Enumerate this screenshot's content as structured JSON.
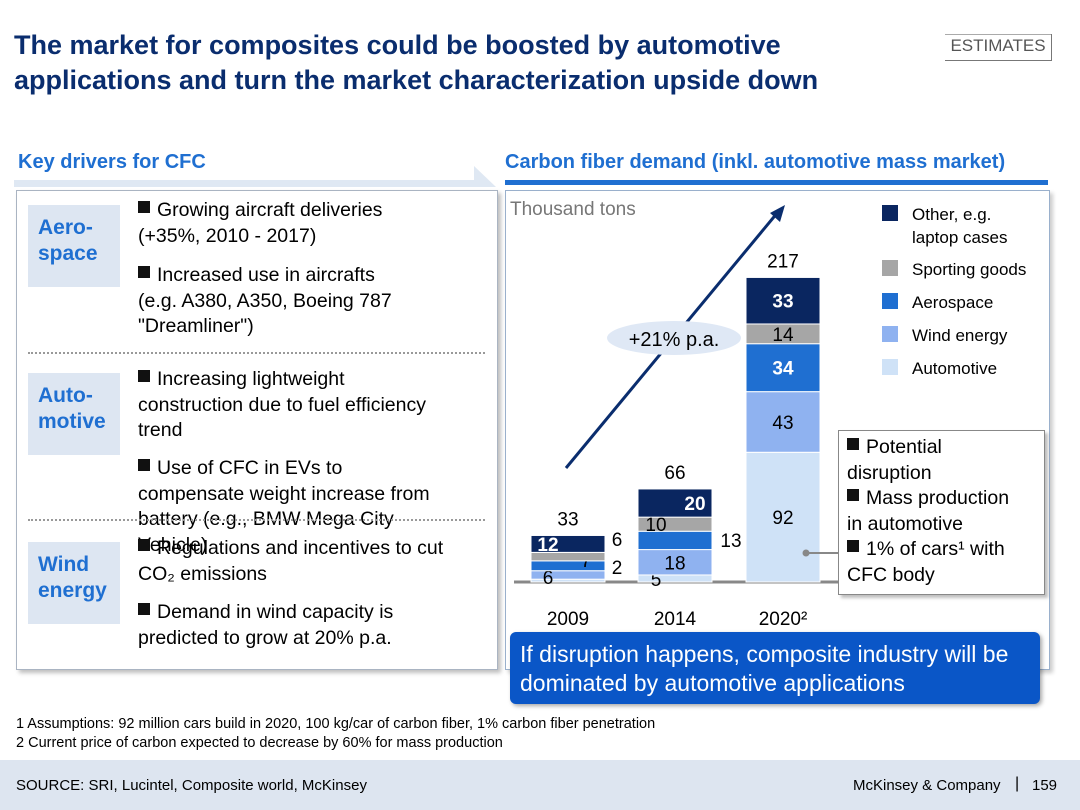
{
  "title": "The market for composites could be boosted by automotive applications and turn the market characterization upside down",
  "tag": "ESTIMATES",
  "left": {
    "header": "Key drivers for CFC",
    "sections": [
      {
        "category": "Aero-\nspace",
        "bullets": [
          "Growing aircraft deliveries\n(+35%, 2010 - 2017)",
          "Increased use in aircrafts\n(e.g. A380, A350, Boeing 787\n\"Dreamliner\")"
        ]
      },
      {
        "category": "Auto-\nmotive",
        "bullets": [
          "Increasing lightweight\nconstruction due to fuel efficiency\ntrend",
          "Use of CFC in EVs to\ncompensate weight increase from\nbattery (e.g., BMW Mega City\nVehicle)"
        ]
      },
      {
        "category": "Wind\nenergy",
        "bullets": [
          "Regulations and incentives to cut\nCO₂ emissions",
          "Demand in wind capacity is\npredicted to grow at 20% p.a."
        ]
      }
    ]
  },
  "right": {
    "header": "Carbon fiber demand (inkl. automotive mass market)",
    "unit": "Thousand tons",
    "growth_label": "+21% p.a.",
    "callout": [
      "Potential\ndisruption",
      "Mass production\nin automotive",
      "1% of cars¹ with\nCFC body"
    ],
    "banner": "If disruption happens, composite industry will be dominated by automotive applications"
  },
  "chart_data": {
    "type": "bar",
    "stacked": true,
    "categories": [
      "2009",
      "2014",
      "2020²"
    ],
    "ylabel": "Thousand tons",
    "totals": [
      33,
      66,
      217
    ],
    "series": [
      {
        "name": "Automotive",
        "color": "#cfe2f7",
        "values": [
          2,
          5,
          92
        ]
      },
      {
        "name": "Wind energy",
        "color": "#8fb2f0",
        "values": [
          6,
          18,
          43
        ]
      },
      {
        "name": "Aerospace",
        "color": "#1f6fd1",
        "values": [
          7,
          13,
          34
        ]
      },
      {
        "name": "Sporting goods",
        "color": "#a6a6a6",
        "values": [
          6,
          10,
          14
        ]
      },
      {
        "name": "Other, e.g.\nlaptop cases",
        "color": "#0a2660",
        "values": [
          12,
          20,
          33
        ]
      }
    ],
    "legend_position": "right"
  },
  "footnotes": [
    "1 Assumptions: 92 million cars build in 2020, 100 kg/car of carbon fiber, 1% carbon fiber penetration",
    "2 Current price of carbon expected to decrease by 60% for mass production"
  ],
  "footer": {
    "source": "SOURCE: SRI, Lucintel, Composite world, McKinsey",
    "company": "McKinsey & Company",
    "separator": "|",
    "page": "159"
  }
}
